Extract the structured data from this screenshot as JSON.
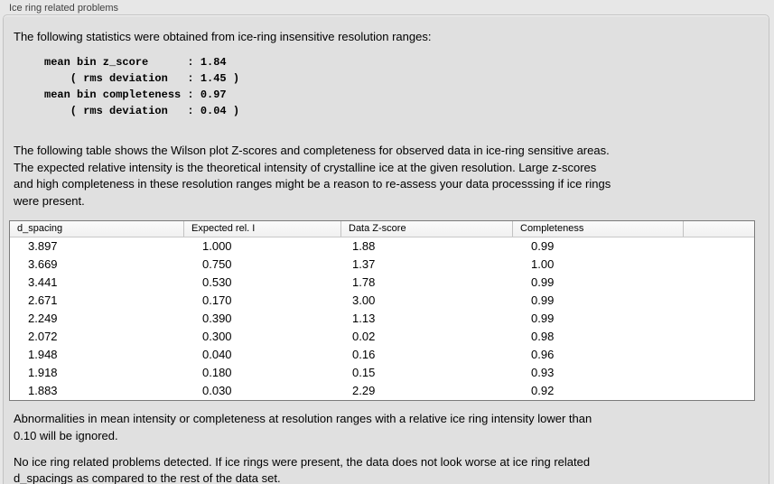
{
  "panel": {
    "title": "Ice ring related problems"
  },
  "intro": "The following statistics were obtained from ice-ring insensitive resolution ranges:",
  "stats_block": "mean bin z_score      : 1.84\n    ( rms deviation   : 1.45 )\nmean bin completeness : 0.97\n    ( rms deviation   : 0.04 )",
  "table_description": "The following table shows the Wilson plot Z-scores and completeness for observed data in ice-ring sensitive areas.\nThe expected relative intensity is the theoretical intensity of crystalline ice at the given resolution. Large z-scores\nand high completeness in these resolution ranges might be a reason to re-assess your data processsing if ice rings\nwere present.",
  "table": {
    "columns": [
      "d_spacing",
      "Expected rel. I",
      "Data Z-score",
      "Completeness"
    ],
    "rows": [
      [
        "3.897",
        "1.000",
        "1.88",
        "0.99"
      ],
      [
        "3.669",
        "0.750",
        "1.37",
        "1.00"
      ],
      [
        "3.441",
        "0.530",
        "1.78",
        "0.99"
      ],
      [
        "2.671",
        "0.170",
        "3.00",
        "0.99"
      ],
      [
        "2.249",
        "0.390",
        "1.13",
        "0.99"
      ],
      [
        "2.072",
        "0.300",
        "0.02",
        "0.98"
      ],
      [
        "1.948",
        "0.040",
        "0.16",
        "0.96"
      ],
      [
        "1.918",
        "0.180",
        "0.15",
        "0.93"
      ],
      [
        "1.883",
        "0.030",
        "2.29",
        "0.92"
      ]
    ]
  },
  "note_ignore": "Abnormalities in mean intensity or completeness at resolution ranges with a relative ice ring intensity lower than\n0.10 will be ignored.",
  "conclusion": "No ice ring related problems detected. If ice rings were present, the data does not look worse at ice ring related\nd_spacings as compared to the rest of the data set.",
  "colors": {
    "window_background": "#e7e7e7",
    "panel_background": "#e0e0e0",
    "panel_border": "#c3c3c3",
    "table_background": "#ffffff",
    "table_border": "#7a7a7a",
    "header_separator": "#c2c2c2",
    "text": "#000000",
    "label_text": "#3f3f3f"
  }
}
